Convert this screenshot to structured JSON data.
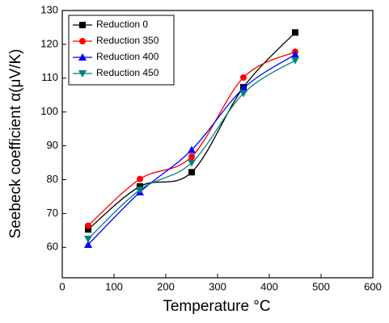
{
  "chart_data": {
    "type": "line",
    "xlabel": "Temperature °C",
    "ylabel": "Seebeck coefficient α(μV/K)",
    "x": [
      50,
      150,
      250,
      350,
      450
    ],
    "series": [
      {
        "name": "Reduction 0",
        "color": "#000000",
        "marker": "square",
        "values": [
          65.3,
          78,
          82.2,
          107.3,
          123.5
        ]
      },
      {
        "name": "Reduction 350",
        "color": "#ff0000",
        "marker": "circle",
        "values": [
          66.4,
          80.2,
          86.8,
          110.2,
          117.8
        ]
      },
      {
        "name": "Reduction 400",
        "color": "#0000ff",
        "marker": "triangle-up",
        "values": [
          60.8,
          76.3,
          88.8,
          107,
          117
        ]
      },
      {
        "name": "Reduction 450",
        "color": "#008080",
        "marker": "triangle-down",
        "values": [
          62.5,
          77,
          85,
          105.5,
          115.3
        ]
      }
    ],
    "xlim": [
      0,
      600
    ],
    "xticks": [
      0,
      100,
      200,
      300,
      400,
      500,
      600
    ],
    "ylim": [
      51,
      130
    ],
    "yticks": [
      60,
      70,
      80,
      90,
      100,
      110,
      120,
      130
    ],
    "legend": "upper left"
  }
}
